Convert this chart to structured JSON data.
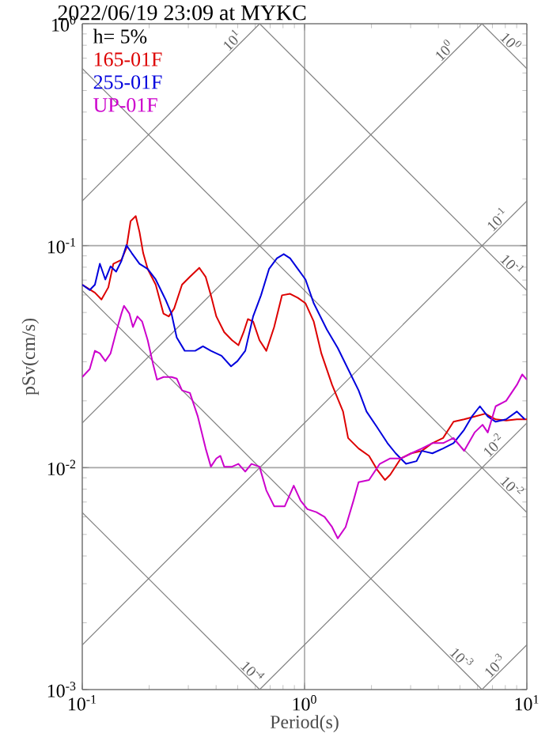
{
  "chart_data": {
    "type": "line",
    "title": "2022/06/19 23:09 at MYKC",
    "xlabel": "Period(s)",
    "ylabel": "pSv(cm/s)",
    "log": "xy",
    "grid": true,
    "legend": "top left",
    "marker": "none",
    "line_style": "solid",
    "xlim": [
      0.1,
      10
    ],
    "ylim": [
      0.001,
      1
    ],
    "xticks": [
      {
        "value": 0.1,
        "label": "10$^{-1}$"
      },
      {
        "value": 1,
        "label": "10$^{0}$"
      },
      {
        "value": 10,
        "label": "10$^{1}$"
      }
    ],
    "yticks": [
      {
        "value": 0.001,
        "label": "10$^{-3}$"
      },
      {
        "value": 0.01,
        "label": "10$^{-2}$"
      },
      {
        "value": 0.1,
        "label": "10$^{-1}$"
      },
      {
        "value": 1,
        "label": "10$^{0}$"
      }
    ],
    "annotations": [
      "h= 5%",
      {
        "text": "10$^{1}$",
        "x": 0.5,
        "y": 0.796
      },
      {
        "text": "10$^{0}$",
        "x": 4.5,
        "y": 0.716
      },
      {
        "text": "10$^{0}$",
        "x": 8.0,
        "y": 0.785
      },
      {
        "text": "10$^{-1}$",
        "x": 7.8,
        "y": 0.124
      },
      {
        "text": "10$^{-1}$",
        "x": 8.1,
        "y": 0.0776
      },
      {
        "text": "10$^{-2}$",
        "x": 7.5,
        "y": 0.0119
      },
      {
        "text": "10$^{-2}$",
        "x": 8.1,
        "y": 0.00776
      },
      {
        "text": "10$^{-4}$",
        "x": 0.55,
        "y": 0.00114
      },
      {
        "text": "10$^{-3}$",
        "x": 4.8,
        "y": 0.00131
      },
      {
        "text": "10$^{-3}$",
        "x": 7.6,
        "y": 0.00121
      }
    ],
    "series": [
      {
        "color": "#808080",
        "x": [
          0.1,
          0.628
        ],
        "values": [
          0.159,
          1
        ]
      },
      {
        "color": "#808080",
        "x": [
          0.1,
          6.28
        ],
        "values": [
          0.0159,
          1
        ]
      },
      {
        "color": "#808080",
        "x": [
          0.1,
          10
        ],
        "values": [
          0.00159,
          0.159
        ]
      },
      {
        "color": "#808080",
        "x": [
          0.628,
          10
        ],
        "values": [
          0.001,
          0.0159
        ]
      },
      {
        "color": "#808080",
        "x": [
          6.28,
          10
        ],
        "values": [
          0.001,
          0.00159
        ]
      },
      {
        "color": "#808080",
        "x": [
          6.28,
          10
        ],
        "values": [
          1,
          0.628
        ]
      },
      {
        "color": "#808080",
        "x": [
          0.628,
          10
        ],
        "values": [
          1,
          0.0628
        ]
      },
      {
        "color": "#808080",
        "x": [
          0.1,
          10
        ],
        "values": [
          0.628,
          0.00628
        ]
      },
      {
        "color": "#808080",
        "x": [
          0.1,
          6.28
        ],
        "values": [
          0.0628,
          0.001
        ]
      },
      {
        "color": "#808080",
        "x": [
          0.1,
          0.628
        ],
        "values": [
          0.00628,
          0.001
        ]
      },
      {
        "name": "165-01F",
        "color": "#dd0000",
        "x": [
          0.1,
          0.114,
          0.122,
          0.131,
          0.138,
          0.15,
          0.158,
          0.165,
          0.174,
          0.181,
          0.188,
          0.197,
          0.214,
          0.232,
          0.245,
          0.259,
          0.281,
          0.305,
          0.336,
          0.359,
          0.379,
          0.401,
          0.435,
          0.472,
          0.504,
          0.532,
          0.556,
          0.587,
          0.627,
          0.673,
          0.73,
          0.792,
          0.861,
          0.933,
          1.01,
          1.1,
          1.19,
          1.33,
          1.49,
          1.57,
          1.75,
          1.95,
          2.12,
          2.3,
          2.43,
          2.71,
          3.02,
          3.37,
          3.76,
          4.2,
          4.68,
          5.22,
          5.82,
          6.5,
          7.24,
          8.07,
          9.02,
          10
        ],
        "values": [
          0.0667,
          0.0614,
          0.0572,
          0.0649,
          0.0829,
          0.0863,
          0.0977,
          0.129,
          0.136,
          0.115,
          0.0926,
          0.0785,
          0.0667,
          0.0494,
          0.048,
          0.0521,
          0.0667,
          0.0724,
          0.0795,
          0.0724,
          0.0598,
          0.048,
          0.0408,
          0.0375,
          0.0356,
          0.0408,
          0.0467,
          0.0455,
          0.0375,
          0.0336,
          0.043,
          0.0598,
          0.0607,
          0.0582,
          0.055,
          0.0455,
          0.0327,
          0.0236,
          0.0179,
          0.0136,
          0.0122,
          0.0113,
          0.0098,
          0.0088,
          0.0093,
          0.011,
          0.0116,
          0.0119,
          0.0129,
          0.0136,
          0.0161,
          0.0165,
          0.017,
          0.0175,
          0.0165,
          0.0163,
          0.0165,
          0.0165
        ]
      },
      {
        "name": "255-01F",
        "color": "#0000dd",
        "x": [
          0.1,
          0.108,
          0.114,
          0.12,
          0.127,
          0.134,
          0.142,
          0.15,
          0.158,
          0.167,
          0.181,
          0.197,
          0.214,
          0.238,
          0.252,
          0.266,
          0.289,
          0.322,
          0.349,
          0.379,
          0.423,
          0.467,
          0.499,
          0.541,
          0.587,
          0.637,
          0.692,
          0.751,
          0.806,
          0.861,
          0.933,
          1.01,
          1.1,
          1.26,
          1.41,
          1.57,
          1.75,
          1.9,
          2.12,
          2.36,
          2.57,
          2.86,
          3.19,
          3.37,
          3.76,
          4.2,
          4.68,
          5.22,
          5.66,
          6.15,
          6.67,
          7.24,
          8.07,
          9.02,
          9.79
        ],
        "values": [
          0.0667,
          0.0631,
          0.0667,
          0.0829,
          0.0704,
          0.0807,
          0.0764,
          0.0853,
          0.1005,
          0.0926,
          0.0829,
          0.0785,
          0.0704,
          0.0566,
          0.0494,
          0.0386,
          0.0336,
          0.0336,
          0.0352,
          0.0336,
          0.0319,
          0.0286,
          0.0302,
          0.0336,
          0.048,
          0.0598,
          0.0785,
          0.0877,
          0.0916,
          0.0877,
          0.0785,
          0.0704,
          0.055,
          0.0419,
          0.0346,
          0.0278,
          0.0223,
          0.0179,
          0.0152,
          0.0129,
          0.0116,
          0.0104,
          0.0107,
          0.0119,
          0.0116,
          0.0122,
          0.0129,
          0.0148,
          0.017,
          0.0189,
          0.017,
          0.0161,
          0.0165,
          0.0179,
          0.0165
        ]
      },
      {
        "name": "UP-01F",
        "color": "#cc00cc",
        "x": [
          0.1,
          0.108,
          0.114,
          0.12,
          0.127,
          0.134,
          0.142,
          0.15,
          0.154,
          0.163,
          0.169,
          0.177,
          0.186,
          0.197,
          0.208,
          0.217,
          0.232,
          0.252,
          0.266,
          0.281,
          0.305,
          0.331,
          0.359,
          0.379,
          0.401,
          0.418,
          0.435,
          0.472,
          0.504,
          0.541,
          0.577,
          0.627,
          0.673,
          0.73,
          0.815,
          0.894,
          0.96,
          1.03,
          1.13,
          1.23,
          1.33,
          1.41,
          1.53,
          1.66,
          1.75,
          1.95,
          2.18,
          2.43,
          2.71,
          3.02,
          3.37,
          3.76,
          4.2,
          4.68,
          5.22,
          5.82,
          6.32,
          6.67,
          7.24,
          8.07,
          9.02,
          9.53,
          10
        ],
        "values": [
          0.0256,
          0.0278,
          0.0336,
          0.0327,
          0.0302,
          0.0327,
          0.0408,
          0.0494,
          0.0536,
          0.0494,
          0.043,
          0.048,
          0.0455,
          0.0375,
          0.0294,
          0.0249,
          0.0256,
          0.0256,
          0.0252,
          0.0223,
          0.0217,
          0.017,
          0.0122,
          0.0101,
          0.011,
          0.0113,
          0.0101,
          0.0101,
          0.0104,
          0.0096,
          0.0104,
          0.0101,
          0.0079,
          0.0067,
          0.0067,
          0.0083,
          0.0071,
          0.0065,
          0.0063,
          0.006,
          0.0054,
          0.0048,
          0.0054,
          0.0071,
          0.0086,
          0.0088,
          0.0104,
          0.011,
          0.011,
          0.0116,
          0.0122,
          0.0129,
          0.0129,
          0.0136,
          0.0119,
          0.0144,
          0.0156,
          0.0144,
          0.0189,
          0.02,
          0.0236,
          0.0263,
          0.0249
        ]
      }
    ]
  }
}
